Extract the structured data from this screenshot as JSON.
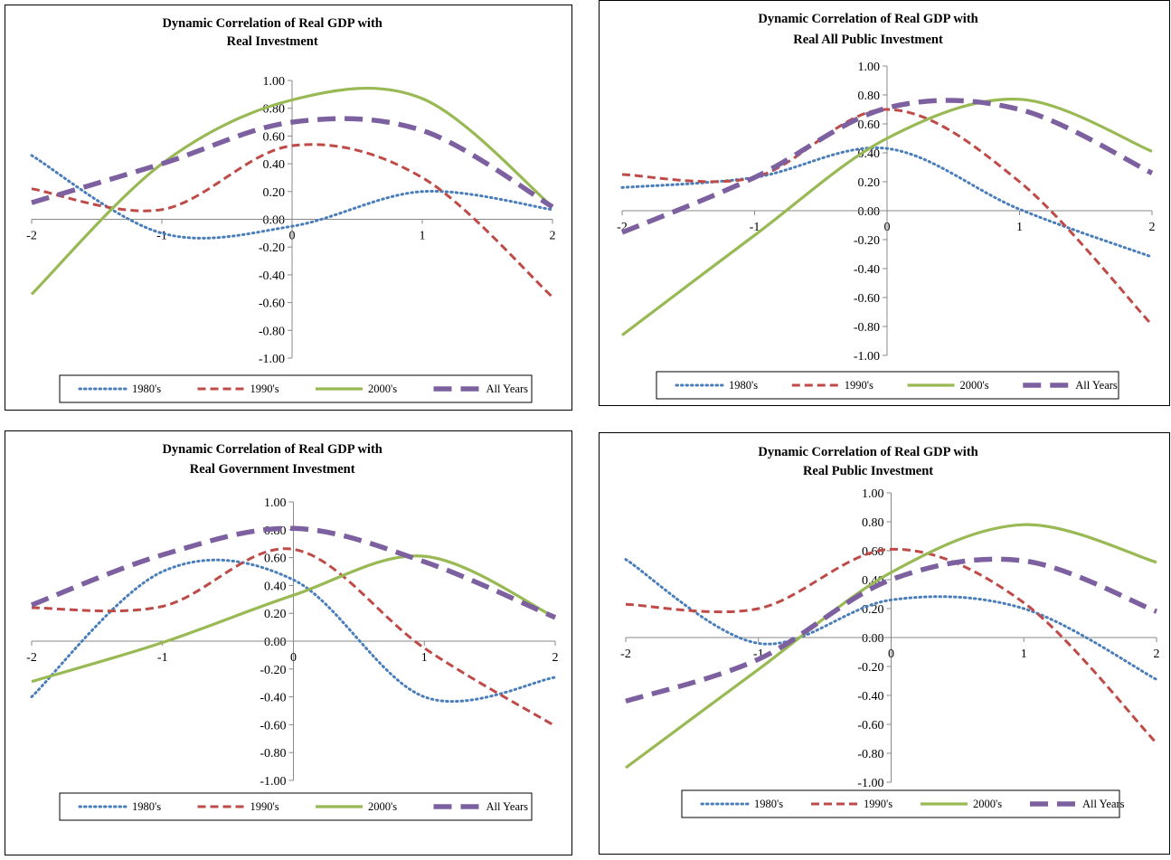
{
  "styles": {
    "1980's": {
      "color": "#4a7ebb",
      "dash": "1.5 4",
      "width": 3,
      "cap": "round"
    },
    "1990's": {
      "color": "#be4b48",
      "dash": "9 5",
      "width": 3,
      "cap": "butt"
    },
    "2000's": {
      "color": "#98b954",
      "dash": "",
      "width": 3.2,
      "cap": "butt"
    },
    "All Years": {
      "color": "#7d60a0",
      "dash": "20 10",
      "width": 5.5,
      "cap": "butt"
    }
  },
  "legend_labels": [
    "1980's",
    "1990's",
    "2000's",
    "All Years"
  ],
  "chart_data": [
    {
      "type": "line",
      "title": [
        "Dynamic Correlation of Real GDP with",
        "Real Investment"
      ],
      "xlabel": "",
      "ylabel": "",
      "xlim": [
        -2,
        2
      ],
      "ylim": [
        -1,
        1
      ],
      "xticks": [
        "-2",
        "-1",
        "0",
        "1",
        "2"
      ],
      "yticks": [
        "1.00",
        "0.80",
        "0.60",
        "0.40",
        "0.20",
        "0.00",
        "-0.20",
        "-0.40",
        "-0.60",
        "-0.80",
        "-1.00"
      ],
      "x": [
        -2,
        -1,
        0,
        1,
        2
      ],
      "series": [
        {
          "name": "1980's",
          "values": [
            0.46,
            -0.1,
            -0.05,
            0.2,
            0.07
          ]
        },
        {
          "name": "1990's",
          "values": [
            0.22,
            0.07,
            0.53,
            0.3,
            -0.56
          ]
        },
        {
          "name": "2000's",
          "values": [
            -0.54,
            0.4,
            0.86,
            0.87,
            0.09
          ]
        },
        {
          "name": "All Years",
          "values": [
            0.12,
            0.4,
            0.7,
            0.64,
            0.09
          ]
        }
      ],
      "legend": "bottom"
    },
    {
      "type": "line",
      "title": [
        "Dynamic Correlation of Real GDP with",
        "Real All Public Investment"
      ],
      "xlabel": "",
      "ylabel": "",
      "xlim": [
        -2,
        2
      ],
      "ylim": [
        -1,
        1
      ],
      "xticks": [
        "-2",
        "-1",
        "0",
        "1",
        "2"
      ],
      "yticks": [
        "1.00",
        "0.80",
        "0.60",
        "0.40",
        "0.20",
        "0.00",
        "-0.20",
        "-0.40",
        "-0.60",
        "-0.80",
        "-1.00"
      ],
      "x": [
        -2,
        -1,
        0,
        1,
        2
      ],
      "series": [
        {
          "name": "1980's",
          "values": [
            0.16,
            0.23,
            0.43,
            0.01,
            -0.32
          ]
        },
        {
          "name": "1990's",
          "values": [
            0.25,
            0.23,
            0.7,
            0.2,
            -0.79
          ]
        },
        {
          "name": "2000's",
          "values": [
            -0.86,
            -0.17,
            0.5,
            0.77,
            0.41
          ]
        },
        {
          "name": "All Years",
          "values": [
            -0.15,
            0.23,
            0.71,
            0.7,
            0.26
          ]
        }
      ],
      "legend": "bottom"
    },
    {
      "type": "line",
      "title": [
        "Dynamic Correlation of Real GDP with",
        "Real  Government Investment"
      ],
      "xlabel": "",
      "ylabel": "",
      "xlim": [
        -2,
        2
      ],
      "ylim": [
        -1,
        1
      ],
      "xticks": [
        "-2",
        "-1",
        "0",
        "1",
        "2"
      ],
      "yticks": [
        "1.00",
        "0.80",
        "0.60",
        "0.40",
        "0.20",
        "0.00",
        "-0.20",
        "-0.40",
        "-0.60",
        "-0.80",
        "-1.00"
      ],
      "x": [
        -2,
        -1,
        0,
        1,
        2
      ],
      "series": [
        {
          "name": "1980's",
          "values": [
            -0.4,
            0.5,
            0.44,
            -0.4,
            -0.26
          ]
        },
        {
          "name": "1990's",
          "values": [
            0.24,
            0.25,
            0.66,
            -0.05,
            -0.61
          ]
        },
        {
          "name": "2000's",
          "values": [
            -0.29,
            -0.01,
            0.33,
            0.61,
            0.17
          ]
        },
        {
          "name": "All Years",
          "values": [
            0.26,
            0.62,
            0.81,
            0.57,
            0.17
          ]
        }
      ],
      "legend": "bottom"
    },
    {
      "type": "line",
      "title": [
        "Dynamic Correlation of Real GDP with",
        "Real Public Investment"
      ],
      "xlabel": "",
      "ylabel": "",
      "xlim": [
        -2,
        2
      ],
      "ylim": [
        -1,
        1
      ],
      "xticks": [
        "-2",
        "-1",
        "0",
        "1",
        "2"
      ],
      "yticks": [
        "1.00",
        "0.80",
        "0.60",
        "0.40",
        "0.20",
        "0.00",
        "-0.20",
        "-0.40",
        "-0.60",
        "-0.80",
        "-1.00"
      ],
      "x": [
        -2,
        -1,
        0,
        1,
        2
      ],
      "series": [
        {
          "name": "1980's",
          "values": [
            0.54,
            -0.04,
            0.26,
            0.2,
            -0.29
          ]
        },
        {
          "name": "1990's",
          "values": [
            0.23,
            0.2,
            0.61,
            0.24,
            -0.73
          ]
        },
        {
          "name": "2000's",
          "values": [
            -0.9,
            -0.22,
            0.45,
            0.78,
            0.52
          ]
        },
        {
          "name": "All Years",
          "values": [
            -0.44,
            -0.15,
            0.4,
            0.53,
            0.18
          ]
        }
      ],
      "legend": "bottom"
    }
  ]
}
